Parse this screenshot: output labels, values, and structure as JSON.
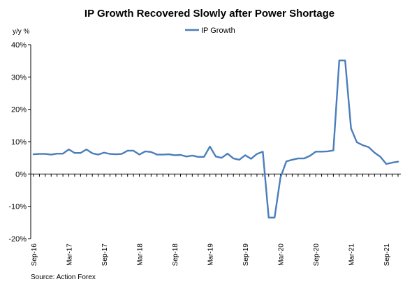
{
  "chart_data": {
    "type": "line",
    "title": "IP Growth Recovered Slowly after Power Shortage",
    "ylabel": "y/y %",
    "xlabel": "",
    "ylim": [
      -20,
      40
    ],
    "y_ticks": [
      40,
      30,
      20,
      10,
      0,
      -10,
      -20
    ],
    "y_tick_labels": [
      "40%",
      "30%",
      "20%",
      "10%",
      "0%",
      "-10%",
      "-20%"
    ],
    "x_tick_labels": [
      "Sep-16",
      "Mar-17",
      "Sep-17",
      "Mar-18",
      "Sep-18",
      "Mar-19",
      "Sep-19",
      "Mar-20",
      "Sep-20",
      "Mar-21",
      "Sep-21"
    ],
    "grid": false,
    "legend_position": "top-center",
    "series": [
      {
        "name": "IP Growth",
        "color": "#4a7ebb",
        "x": [
          "Sep-16",
          "Oct-16",
          "Nov-16",
          "Dec-16",
          "Jan-17",
          "Feb-17",
          "Mar-17",
          "Apr-17",
          "May-17",
          "Jun-17",
          "Jul-17",
          "Aug-17",
          "Sep-17",
          "Oct-17",
          "Nov-17",
          "Dec-17",
          "Jan-18",
          "Feb-18",
          "Mar-18",
          "Apr-18",
          "May-18",
          "Jun-18",
          "Jul-18",
          "Aug-18",
          "Sep-18",
          "Oct-18",
          "Nov-18",
          "Dec-18",
          "Jan-19",
          "Feb-19",
          "Mar-19",
          "Apr-19",
          "May-19",
          "Jun-19",
          "Jul-19",
          "Aug-19",
          "Sep-19",
          "Oct-19",
          "Nov-19",
          "Dec-19",
          "Jan-20",
          "Feb-20",
          "Mar-20",
          "Apr-20",
          "May-20",
          "Jun-20",
          "Jul-20",
          "Aug-20",
          "Sep-20",
          "Oct-20",
          "Nov-20",
          "Dec-20",
          "Jan-21",
          "Feb-21",
          "Mar-21",
          "Apr-21",
          "May-21",
          "Jun-21",
          "Jul-21",
          "Aug-21",
          "Sep-21",
          "Oct-21",
          "Nov-21"
        ],
        "values": [
          6.1,
          6.2,
          6.2,
          6.0,
          6.3,
          6.3,
          7.6,
          6.5,
          6.5,
          7.6,
          6.4,
          6.0,
          6.6,
          6.2,
          6.1,
          6.2,
          7.2,
          7.2,
          6.0,
          7.0,
          6.8,
          6.0,
          6.0,
          6.1,
          5.8,
          5.9,
          5.4,
          5.7,
          5.3,
          5.3,
          8.5,
          5.4,
          5.0,
          6.3,
          4.8,
          4.4,
          5.8,
          4.7,
          6.2,
          6.9,
          -13.5,
          -13.5,
          -1.1,
          3.9,
          4.4,
          4.8,
          4.8,
          5.6,
          6.9,
          6.9,
          7.0,
          7.3,
          35.1,
          35.1,
          14.1,
          9.8,
          8.9,
          8.3,
          6.6,
          5.3,
          3.1,
          3.5,
          3.8
        ]
      }
    ],
    "source": "Source: Action Forex"
  }
}
